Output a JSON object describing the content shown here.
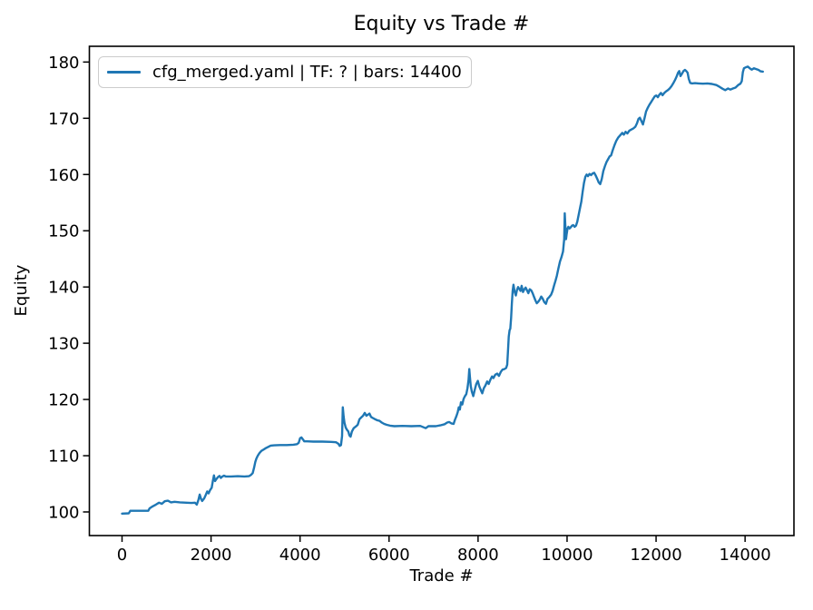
{
  "title": "Equity vs Trade #",
  "axes": {
    "xlabel": "Trade #",
    "ylabel": "Equity"
  },
  "legend": {
    "label": "cfg_merged.yaml | TF: ? | bars: 14400"
  },
  "colors": {
    "line": "#1f77b4",
    "text": "#000000",
    "legend_border": "#cccccc",
    "background": "#ffffff"
  },
  "chart_data": {
    "type": "line",
    "title": "Equity vs Trade #",
    "xlabel": "Trade #",
    "ylabel": "Equity",
    "xlim": [
      -734,
      15098
    ],
    "ylim": [
      95.8,
      182.8
    ],
    "xticks": [
      0,
      2000,
      4000,
      6000,
      8000,
      10000,
      12000,
      14000
    ],
    "yticks": [
      100,
      110,
      120,
      130,
      140,
      150,
      160,
      170,
      180
    ],
    "grid": false,
    "legend_position": "upper left",
    "series": [
      {
        "name": "cfg_merged.yaml | TF: ? | bars: 14400",
        "color": "#1f77b4",
        "points": [
          [
            0,
            99.7
          ],
          [
            150,
            99.75
          ],
          [
            185,
            100.2
          ],
          [
            590,
            100.2
          ],
          [
            620,
            100.65
          ],
          [
            690,
            101.0
          ],
          [
            760,
            101.3
          ],
          [
            830,
            101.65
          ],
          [
            895,
            101.45
          ],
          [
            960,
            101.9
          ],
          [
            1030,
            102.0
          ],
          [
            1100,
            101.7
          ],
          [
            1180,
            101.8
          ],
          [
            1300,
            101.7
          ],
          [
            1450,
            101.65
          ],
          [
            1560,
            101.6
          ],
          [
            1640,
            101.65
          ],
          [
            1680,
            101.3
          ],
          [
            1715,
            102.1
          ],
          [
            1745,
            103.1
          ],
          [
            1775,
            102.3
          ],
          [
            1800,
            101.95
          ],
          [
            1845,
            102.4
          ],
          [
            1880,
            103.0
          ],
          [
            1915,
            103.65
          ],
          [
            1945,
            103.3
          ],
          [
            1980,
            103.9
          ],
          [
            2015,
            104.3
          ],
          [
            2045,
            105.7
          ],
          [
            2065,
            106.5
          ],
          [
            2090,
            105.5
          ],
          [
            2120,
            105.85
          ],
          [
            2155,
            106.2
          ],
          [
            2190,
            106.4
          ],
          [
            2220,
            106.05
          ],
          [
            2255,
            106.3
          ],
          [
            2290,
            106.45
          ],
          [
            2330,
            106.3
          ],
          [
            2450,
            106.3
          ],
          [
            2600,
            106.35
          ],
          [
            2750,
            106.3
          ],
          [
            2850,
            106.35
          ],
          [
            2900,
            106.6
          ],
          [
            2935,
            106.9
          ],
          [
            2965,
            107.8
          ],
          [
            2995,
            108.9
          ],
          [
            3020,
            109.5
          ],
          [
            3050,
            110.0
          ],
          [
            3090,
            110.5
          ],
          [
            3130,
            110.85
          ],
          [
            3180,
            111.1
          ],
          [
            3230,
            111.35
          ],
          [
            3280,
            111.55
          ],
          [
            3340,
            111.8
          ],
          [
            3420,
            111.85
          ],
          [
            3550,
            111.9
          ],
          [
            3700,
            111.9
          ],
          [
            3850,
            111.95
          ],
          [
            3930,
            112.05
          ],
          [
            3970,
            112.3
          ],
          [
            4000,
            113.1
          ],
          [
            4030,
            113.25
          ],
          [
            4065,
            112.9
          ],
          [
            4095,
            112.55
          ],
          [
            4160,
            112.55
          ],
          [
            4300,
            112.5
          ],
          [
            4500,
            112.5
          ],
          [
            4700,
            112.45
          ],
          [
            4810,
            112.4
          ],
          [
            4865,
            112.1
          ],
          [
            4890,
            111.75
          ],
          [
            4920,
            111.9
          ],
          [
            4945,
            113.5
          ],
          [
            4960,
            118.6
          ],
          [
            4978,
            117.0
          ],
          [
            4998,
            115.9
          ],
          [
            5025,
            115.0
          ],
          [
            5055,
            114.6
          ],
          [
            5085,
            114.3
          ],
          [
            5110,
            113.6
          ],
          [
            5135,
            113.4
          ],
          [
            5165,
            114.3
          ],
          [
            5205,
            114.9
          ],
          [
            5255,
            115.2
          ],
          [
            5295,
            115.5
          ],
          [
            5335,
            116.5
          ],
          [
            5375,
            116.8
          ],
          [
            5415,
            117.1
          ],
          [
            5455,
            117.6
          ],
          [
            5490,
            117.1
          ],
          [
            5525,
            117.3
          ],
          [
            5560,
            117.5
          ],
          [
            5595,
            116.9
          ],
          [
            5635,
            116.7
          ],
          [
            5685,
            116.5
          ],
          [
            5735,
            116.3
          ],
          [
            5785,
            116.2
          ],
          [
            5835,
            115.9
          ],
          [
            5890,
            115.65
          ],
          [
            5950,
            115.5
          ],
          [
            6020,
            115.35
          ],
          [
            6120,
            115.25
          ],
          [
            6300,
            115.3
          ],
          [
            6500,
            115.25
          ],
          [
            6700,
            115.3
          ],
          [
            6825,
            114.9
          ],
          [
            6885,
            115.25
          ],
          [
            7050,
            115.25
          ],
          [
            7150,
            115.4
          ],
          [
            7250,
            115.6
          ],
          [
            7305,
            115.9
          ],
          [
            7350,
            116.0
          ],
          [
            7400,
            115.75
          ],
          [
            7450,
            115.65
          ],
          [
            7480,
            116.4
          ],
          [
            7512,
            117.0
          ],
          [
            7542,
            117.7
          ],
          [
            7566,
            118.6
          ],
          [
            7590,
            118.2
          ],
          [
            7616,
            119.5
          ],
          [
            7645,
            119.1
          ],
          [
            7675,
            120.1
          ],
          [
            7705,
            120.6
          ],
          [
            7735,
            120.95
          ],
          [
            7762,
            122.0
          ],
          [
            7786,
            123.5
          ],
          [
            7802,
            125.4
          ],
          [
            7818,
            124.0
          ],
          [
            7835,
            122.4
          ],
          [
            7860,
            121.4
          ],
          [
            7892,
            120.6
          ],
          [
            7925,
            121.7
          ],
          [
            7958,
            122.7
          ],
          [
            7995,
            123.3
          ],
          [
            8030,
            122.3
          ],
          [
            8065,
            121.6
          ],
          [
            8095,
            121.1
          ],
          [
            8130,
            122.0
          ],
          [
            8165,
            122.5
          ],
          [
            8205,
            123.2
          ],
          [
            8240,
            122.75
          ],
          [
            8275,
            123.5
          ],
          [
            8315,
            124.1
          ],
          [
            8345,
            123.8
          ],
          [
            8385,
            124.4
          ],
          [
            8430,
            124.6
          ],
          [
            8470,
            124.2
          ],
          [
            8510,
            124.9
          ],
          [
            8550,
            125.3
          ],
          [
            8590,
            125.4
          ],
          [
            8630,
            125.6
          ],
          [
            8655,
            126.2
          ],
          [
            8672,
            128.5
          ],
          [
            8690,
            131.2
          ],
          [
            8708,
            132.3
          ],
          [
            8725,
            132.6
          ],
          [
            8742,
            134.5
          ],
          [
            8760,
            137.0
          ],
          [
            8778,
            139.3
          ],
          [
            8795,
            140.4
          ],
          [
            8820,
            139.2
          ],
          [
            8848,
            138.5
          ],
          [
            8875,
            139.5
          ],
          [
            8900,
            140.0
          ],
          [
            8930,
            139.6
          ],
          [
            8955,
            139.3
          ],
          [
            8980,
            140.2
          ],
          [
            9010,
            139.1
          ],
          [
            9040,
            139.6
          ],
          [
            9070,
            139.9
          ],
          [
            9100,
            139.4
          ],
          [
            9130,
            138.9
          ],
          [
            9160,
            139.6
          ],
          [
            9195,
            139.4
          ],
          [
            9225,
            138.9
          ],
          [
            9255,
            138.3
          ],
          [
            9290,
            137.6
          ],
          [
            9320,
            137.1
          ],
          [
            9355,
            137.4
          ],
          [
            9390,
            137.8
          ],
          [
            9420,
            138.3
          ],
          [
            9455,
            137.9
          ],
          [
            9490,
            137.3
          ],
          [
            9525,
            137.0
          ],
          [
            9560,
            137.9
          ],
          [
            9600,
            138.2
          ],
          [
            9640,
            138.6
          ],
          [
            9675,
            139.3
          ],
          [
            9710,
            140.3
          ],
          [
            9740,
            141.1
          ],
          [
            9770,
            142.0
          ],
          [
            9805,
            143.3
          ],
          [
            9840,
            144.5
          ],
          [
            9875,
            145.3
          ],
          [
            9910,
            146.3
          ],
          [
            9935,
            148.5
          ],
          [
            9948,
            153.1
          ],
          [
            9962,
            150.8
          ],
          [
            9976,
            148.5
          ],
          [
            9990,
            149.4
          ],
          [
            10010,
            150.4
          ],
          [
            10030,
            150.7
          ],
          [
            10055,
            150.4
          ],
          [
            10080,
            150.6
          ],
          [
            10110,
            150.9
          ],
          [
            10140,
            151.0
          ],
          [
            10170,
            150.7
          ],
          [
            10200,
            150.9
          ],
          [
            10230,
            151.6
          ],
          [
            10260,
            152.8
          ],
          [
            10290,
            154.0
          ],
          [
            10320,
            155.2
          ],
          [
            10350,
            156.9
          ],
          [
            10380,
            158.5
          ],
          [
            10410,
            159.6
          ],
          [
            10440,
            160.0
          ],
          [
            10470,
            159.7
          ],
          [
            10505,
            160.1
          ],
          [
            10540,
            159.9
          ],
          [
            10575,
            160.2
          ],
          [
            10610,
            160.3
          ],
          [
            10645,
            159.8
          ],
          [
            10680,
            159.2
          ],
          [
            10710,
            158.6
          ],
          [
            10745,
            158.3
          ],
          [
            10780,
            159.2
          ],
          [
            10815,
            160.6
          ],
          [
            10850,
            161.5
          ],
          [
            10885,
            162.2
          ],
          [
            10920,
            162.7
          ],
          [
            10955,
            163.2
          ],
          [
            10990,
            163.4
          ],
          [
            11025,
            164.3
          ],
          [
            11065,
            165.2
          ],
          [
            11105,
            166.0
          ],
          [
            11150,
            166.6
          ],
          [
            11195,
            167.0
          ],
          [
            11240,
            167.4
          ],
          [
            11275,
            167.1
          ],
          [
            11315,
            167.6
          ],
          [
            11355,
            167.3
          ],
          [
            11400,
            167.8
          ],
          [
            11445,
            168.0
          ],
          [
            11490,
            168.2
          ],
          [
            11535,
            168.5
          ],
          [
            11570,
            169.1
          ],
          [
            11605,
            169.9
          ],
          [
            11635,
            170.1
          ],
          [
            11670,
            169.5
          ],
          [
            11705,
            168.9
          ],
          [
            11740,
            170.0
          ],
          [
            11775,
            171.2
          ],
          [
            11810,
            171.8
          ],
          [
            11850,
            172.4
          ],
          [
            11890,
            172.9
          ],
          [
            11930,
            173.4
          ],
          [
            11970,
            173.9
          ],
          [
            12005,
            174.05
          ],
          [
            12040,
            173.75
          ],
          [
            12075,
            174.2
          ],
          [
            12110,
            174.5
          ],
          [
            12145,
            174.1
          ],
          [
            12185,
            174.5
          ],
          [
            12225,
            174.8
          ],
          [
            12265,
            175.0
          ],
          [
            12305,
            175.3
          ],
          [
            12345,
            175.7
          ],
          [
            12385,
            176.2
          ],
          [
            12425,
            176.8
          ],
          [
            12460,
            177.4
          ],
          [
            12495,
            178.1
          ],
          [
            12520,
            178.4
          ],
          [
            12550,
            177.5
          ],
          [
            12580,
            177.9
          ],
          [
            12615,
            178.4
          ],
          [
            12650,
            178.6
          ],
          [
            12680,
            178.4
          ],
          [
            12708,
            178.1
          ],
          [
            12735,
            177.0
          ],
          [
            12765,
            176.3
          ],
          [
            12805,
            176.2
          ],
          [
            12875,
            176.25
          ],
          [
            12955,
            176.2
          ],
          [
            13055,
            176.15
          ],
          [
            13155,
            176.2
          ],
          [
            13255,
            176.1
          ],
          [
            13355,
            175.9
          ],
          [
            13425,
            175.6
          ],
          [
            13495,
            175.25
          ],
          [
            13555,
            175.0
          ],
          [
            13615,
            175.3
          ],
          [
            13670,
            175.1
          ],
          [
            13725,
            175.3
          ],
          [
            13785,
            175.45
          ],
          [
            13845,
            175.9
          ],
          [
            13895,
            176.15
          ],
          [
            13925,
            176.6
          ],
          [
            13950,
            178.2
          ],
          [
            13975,
            178.9
          ],
          [
            14015,
            179.05
          ],
          [
            14060,
            179.2
          ],
          [
            14105,
            178.9
          ],
          [
            14150,
            178.65
          ],
          [
            14200,
            178.9
          ],
          [
            14250,
            178.75
          ],
          [
            14300,
            178.6
          ],
          [
            14350,
            178.35
          ],
          [
            14400,
            178.3
          ]
        ]
      }
    ]
  }
}
